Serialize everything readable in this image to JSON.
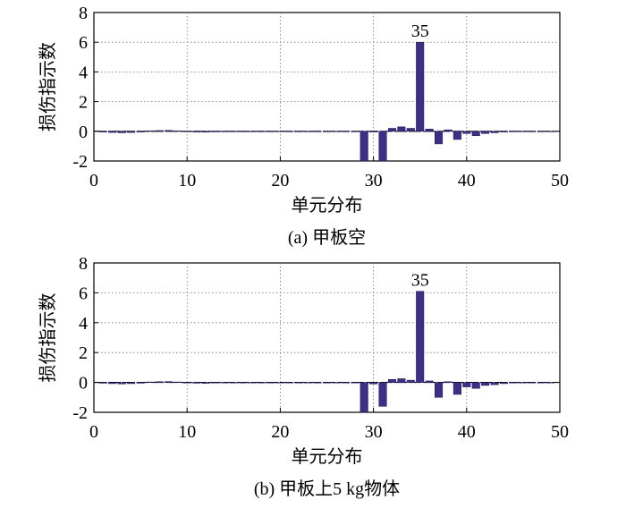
{
  "chart_data": [
    {
      "type": "bar",
      "caption": "(a) 甲板空",
      "xlabel": "单元分布",
      "ylabel": "损伤指示数",
      "xlim": [
        0,
        50
      ],
      "ylim": [
        -2,
        8
      ],
      "xticks": [
        0,
        10,
        20,
        30,
        40,
        50
      ],
      "yticks": [
        -2,
        0,
        2,
        4,
        6,
        8
      ],
      "grid": true,
      "bar_color": "#3d2f86",
      "annotations": [
        {
          "text": "35",
          "x": 35,
          "y": 6.0
        }
      ],
      "x": [
        1,
        2,
        3,
        4,
        5,
        6,
        7,
        8,
        9,
        10,
        11,
        12,
        13,
        14,
        15,
        16,
        17,
        18,
        19,
        20,
        21,
        22,
        23,
        24,
        25,
        26,
        27,
        28,
        29,
        30,
        31,
        32,
        33,
        34,
        35,
        36,
        37,
        38,
        39,
        40,
        41,
        42,
        43,
        44,
        45,
        46,
        47,
        48,
        49
      ],
      "values": [
        -0.05,
        -0.08,
        -0.1,
        -0.08,
        -0.05,
        0.03,
        0.05,
        0.06,
        0.03,
        -0.02,
        -0.05,
        -0.06,
        -0.04,
        -0.03,
        -0.02,
        -0.02,
        -0.02,
        -0.02,
        -0.02,
        -0.02,
        -0.02,
        -0.02,
        -0.02,
        -0.02,
        -0.02,
        -0.02,
        -0.02,
        -0.02,
        -2.0,
        -0.05,
        -2.0,
        0.2,
        0.3,
        0.2,
        6.0,
        0.15,
        -0.85,
        0.1,
        -0.55,
        -0.15,
        -0.3,
        -0.15,
        -0.1,
        -0.05,
        -0.03,
        -0.02,
        -0.02,
        -0.02,
        -0.02
      ]
    },
    {
      "type": "bar",
      "caption": "(b) 甲板上5 kg物体",
      "xlabel": "单元分布",
      "ylabel": "损伤指示数",
      "xlim": [
        0,
        50
      ],
      "ylim": [
        -2,
        8
      ],
      "xticks": [
        0,
        10,
        20,
        30,
        40,
        50
      ],
      "yticks": [
        -2,
        0,
        2,
        4,
        6,
        8
      ],
      "grid": true,
      "bar_color": "#3d2f86",
      "annotations": [
        {
          "text": "35",
          "x": 35,
          "y": 6.1
        }
      ],
      "x": [
        1,
        2,
        3,
        4,
        5,
        6,
        7,
        8,
        9,
        10,
        11,
        12,
        13,
        14,
        15,
        16,
        17,
        18,
        19,
        20,
        21,
        22,
        23,
        24,
        25,
        26,
        27,
        28,
        29,
        30,
        31,
        32,
        33,
        34,
        35,
        36,
        37,
        38,
        39,
        40,
        41,
        42,
        43,
        44,
        45,
        46,
        47,
        48,
        49
      ],
      "values": [
        -0.05,
        -0.08,
        -0.1,
        -0.08,
        -0.05,
        0.03,
        0.05,
        0.06,
        0.03,
        -0.02,
        -0.05,
        -0.06,
        -0.04,
        -0.03,
        -0.02,
        -0.02,
        -0.02,
        -0.02,
        -0.02,
        -0.02,
        -0.02,
        -0.02,
        -0.02,
        -0.02,
        -0.02,
        -0.02,
        -0.02,
        -0.02,
        -2.0,
        -0.1,
        -1.6,
        0.2,
        0.25,
        0.15,
        6.1,
        0.1,
        -1.0,
        0.05,
        -0.8,
        -0.3,
        -0.4,
        -0.2,
        -0.15,
        -0.08,
        -0.03,
        -0.02,
        -0.02,
        -0.02,
        -0.02
      ]
    }
  ]
}
